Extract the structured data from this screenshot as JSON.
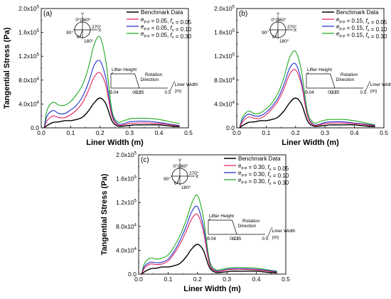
{
  "chart_data": [
    {
      "type": "line",
      "panel_label": "(a)",
      "xlabel": "Liner Width (m)",
      "ylabel": "Tangential Stress (Pa)",
      "xlim": [
        0.0,
        0.5
      ],
      "ylim": [
        0,
        200000
      ],
      "x_ticks": [
        "0.0",
        "0.1",
        "0.2",
        "0.3",
        "0.4",
        "0.5"
      ],
      "y_ticks": [
        "0.0",
        "4.0x10^4",
        "8.0x10^4",
        "1.2x10^5",
        "1.6x10^5",
        "2.0x10^5"
      ],
      "legend_position": "top-right",
      "series": [
        {
          "name": "Benchmark Data",
          "color": "#000000",
          "x": [
            0.01,
            0.02,
            0.04,
            0.06,
            0.08,
            0.1,
            0.12,
            0.14,
            0.16,
            0.18,
            0.2,
            0.22,
            0.24,
            0.26,
            0.28,
            0.3,
            0.32,
            0.36,
            0.4,
            0.44,
            0.47
          ],
          "y": [
            0,
            4000,
            9000,
            10000,
            12000,
            12000,
            14000,
            18000,
            28000,
            42000,
            50000,
            40000,
            12000,
            3000,
            3000,
            4000,
            5000,
            5000,
            5000,
            3000,
            2000
          ]
        },
        {
          "name": "e_p-p = 0.05, f_s = 0.05",
          "color": "#e0245e",
          "x": [
            0.01,
            0.02,
            0.04,
            0.06,
            0.08,
            0.1,
            0.12,
            0.14,
            0.16,
            0.18,
            0.2,
            0.22,
            0.24,
            0.26,
            0.28,
            0.3,
            0.32,
            0.36,
            0.4,
            0.44,
            0.47
          ],
          "y": [
            0,
            12000,
            20000,
            17000,
            17000,
            22000,
            30000,
            42000,
            62000,
            85000,
            92000,
            70000,
            20000,
            5000,
            5000,
            7000,
            8000,
            8000,
            7000,
            5000,
            3000
          ]
        },
        {
          "name": "e_p-p = 0.05, f_s = 0.10",
          "color": "#2233cc",
          "x": [
            0.01,
            0.02,
            0.04,
            0.06,
            0.08,
            0.1,
            0.12,
            0.14,
            0.16,
            0.18,
            0.2,
            0.22,
            0.24,
            0.26,
            0.28,
            0.3,
            0.32,
            0.36,
            0.4,
            0.44,
            0.47
          ],
          "y": [
            0,
            20000,
            29000,
            24000,
            24000,
            30000,
            38000,
            52000,
            75000,
            105000,
            112000,
            82000,
            24000,
            7000,
            7000,
            10000,
            11000,
            11000,
            9000,
            6000,
            4000
          ]
        },
        {
          "name": "e_p-p = 0.05, f_s = 0.30",
          "color": "#22aa22",
          "x": [
            0.01,
            0.02,
            0.04,
            0.06,
            0.08,
            0.1,
            0.12,
            0.14,
            0.16,
            0.18,
            0.2,
            0.22,
            0.24,
            0.26,
            0.28,
            0.3,
            0.32,
            0.36,
            0.4,
            0.44,
            0.47
          ],
          "y": [
            0,
            30000,
            43000,
            38000,
            38000,
            44000,
            56000,
            72000,
            100000,
            140000,
            152000,
            110000,
            30000,
            10000,
            12000,
            15000,
            16000,
            16000,
            14000,
            10000,
            7000
          ]
        }
      ],
      "inset": {
        "polar_labels": [
          "Y",
          "0°",
          "360°",
          "270°",
          "X",
          "90°",
          "6°",
          "180°"
        ],
        "lifter_height": "Lifter Height",
        "rotation": "Rotation",
        "direction": "Direction",
        "liner_width": "Liner Width",
        "unit": "(m)",
        "ticks": [
          "0",
          "0.04",
          "0.21",
          "0.25",
          "0.5"
        ]
      }
    },
    {
      "type": "line",
      "panel_label": "(b)",
      "xlabel": "Liner Width (m)",
      "ylabel": "",
      "xlim": [
        0.0,
        0.5
      ],
      "ylim": [
        0,
        200000
      ],
      "x_ticks": [
        "0.0",
        "0.1",
        "0.2",
        "0.3",
        "0.4",
        "0.5"
      ],
      "y_ticks": [
        "0.0",
        "4.0x10^4",
        "8.0x10^4",
        "1.2x10^5",
        "1.6x10^5",
        "2.0x10^5"
      ],
      "legend_position": "top-right",
      "series": [
        {
          "name": "Benchmark Data",
          "color": "#000000",
          "x": [
            0.01,
            0.02,
            0.04,
            0.06,
            0.08,
            0.1,
            0.12,
            0.14,
            0.16,
            0.18,
            0.2,
            0.22,
            0.24,
            0.26,
            0.28,
            0.3,
            0.32,
            0.36,
            0.4,
            0.44,
            0.47
          ],
          "y": [
            0,
            4000,
            9000,
            10000,
            12000,
            12000,
            14000,
            18000,
            28000,
            42000,
            50000,
            40000,
            12000,
            3000,
            3000,
            4000,
            5000,
            5000,
            5000,
            3000,
            2000
          ]
        },
        {
          "name": "e_p-p = 0.15, f_s = 0.05",
          "color": "#e0245e",
          "x": [
            0.01,
            0.02,
            0.04,
            0.06,
            0.08,
            0.1,
            0.12,
            0.14,
            0.16,
            0.18,
            0.2,
            0.22,
            0.24,
            0.26,
            0.28,
            0.3,
            0.32,
            0.36,
            0.4,
            0.44,
            0.47
          ],
          "y": [
            0,
            10000,
            18000,
            16000,
            16000,
            22000,
            32000,
            45000,
            65000,
            90000,
            97000,
            72000,
            20000,
            5000,
            5000,
            7000,
            8000,
            8000,
            7000,
            5000,
            3000
          ]
        },
        {
          "name": "e_p-p = 0.15, f_s = 0.10",
          "color": "#2233cc",
          "x": [
            0.01,
            0.02,
            0.04,
            0.06,
            0.08,
            0.1,
            0.12,
            0.14,
            0.16,
            0.18,
            0.2,
            0.22,
            0.24,
            0.26,
            0.28,
            0.3,
            0.32,
            0.36,
            0.4,
            0.44,
            0.47
          ],
          "y": [
            0,
            14000,
            23000,
            20000,
            20000,
            26000,
            36000,
            50000,
            72000,
            100000,
            107000,
            78000,
            22000,
            6000,
            6000,
            9000,
            10000,
            10000,
            8000,
            6000,
            4000
          ]
        },
        {
          "name": "e_p-p = 0.15, f_s = 0.30",
          "color": "#22aa22",
          "x": [
            0.01,
            0.02,
            0.04,
            0.06,
            0.08,
            0.1,
            0.12,
            0.14,
            0.16,
            0.18,
            0.2,
            0.22,
            0.24,
            0.26,
            0.28,
            0.3,
            0.32,
            0.36,
            0.4,
            0.44,
            0.47
          ],
          "y": [
            0,
            18000,
            28000,
            24000,
            25000,
            32000,
            42000,
            58000,
            84000,
            118000,
            128000,
            95000,
            28000,
            9000,
            10000,
            13000,
            14000,
            14000,
            12000,
            8000,
            5000
          ]
        }
      ],
      "inset": {
        "polar_labels": [
          "Y",
          "0°",
          "360°",
          "270°",
          "X",
          "90°",
          "6°",
          "180°"
        ],
        "lifter_height": "Lifter Height",
        "rotation": "Rotation",
        "direction": "Direction",
        "liner_width": "Liner Width",
        "unit": "(m)",
        "ticks": [
          "0",
          "0.04",
          "0.21",
          "0.25",
          "0.5"
        ]
      }
    },
    {
      "type": "line",
      "panel_label": "(c)",
      "xlabel": "Liner Width (m)",
      "ylabel": "Tangential Stress (Pa)",
      "xlim": [
        0.0,
        0.5
      ],
      "ylim": [
        0,
        200000
      ],
      "x_ticks": [
        "0.0",
        "0.1",
        "0.2",
        "0.3",
        "0.4",
        "0.5"
      ],
      "y_ticks": [
        "0.0",
        "4.0x10^4",
        "8.0x10^4",
        "1.2x10^5",
        "1.6x10^5",
        "2.0x10^5"
      ],
      "legend_position": "top-right",
      "series": [
        {
          "name": "Benchmark Data",
          "color": "#000000",
          "x": [
            0.01,
            0.02,
            0.04,
            0.06,
            0.08,
            0.1,
            0.12,
            0.14,
            0.16,
            0.18,
            0.2,
            0.22,
            0.24,
            0.26,
            0.28,
            0.3,
            0.32,
            0.36,
            0.4,
            0.44,
            0.47
          ],
          "y": [
            0,
            4000,
            9000,
            10000,
            12000,
            12000,
            14000,
            18000,
            28000,
            42000,
            50000,
            40000,
            12000,
            3000,
            3000,
            4000,
            5000,
            5000,
            5000,
            3000,
            2000
          ]
        },
        {
          "name": "e_p-p = 0.30, f_s = 0.05",
          "color": "#e0245e",
          "x": [
            0.01,
            0.02,
            0.04,
            0.06,
            0.08,
            0.1,
            0.12,
            0.14,
            0.16,
            0.18,
            0.2,
            0.22,
            0.24,
            0.26,
            0.28,
            0.3,
            0.32,
            0.36,
            0.4,
            0.44,
            0.47
          ],
          "y": [
            0,
            10000,
            17000,
            16000,
            17000,
            22000,
            34000,
            50000,
            70000,
            92000,
            100000,
            72000,
            18000,
            5000,
            5000,
            7000,
            8000,
            8000,
            7000,
            5000,
            3000
          ]
        },
        {
          "name": "e_p-p = 0.30, f_s = 0.10",
          "color": "#2233cc",
          "x": [
            0.01,
            0.02,
            0.04,
            0.06,
            0.08,
            0.1,
            0.12,
            0.14,
            0.16,
            0.18,
            0.2,
            0.22,
            0.24,
            0.26,
            0.28,
            0.3,
            0.32,
            0.36,
            0.4,
            0.44,
            0.47
          ],
          "y": [
            0,
            13000,
            20000,
            19000,
            20000,
            25000,
            38000,
            56000,
            78000,
            104000,
            113000,
            80000,
            20000,
            6000,
            6000,
            8000,
            9000,
            9000,
            8000,
            6000,
            4000
          ]
        },
        {
          "name": "e_p-p = 0.30, f_s = 0.30",
          "color": "#22aa22",
          "x": [
            0.01,
            0.02,
            0.04,
            0.06,
            0.08,
            0.1,
            0.12,
            0.14,
            0.16,
            0.18,
            0.2,
            0.22,
            0.24,
            0.26,
            0.28,
            0.3,
            0.32,
            0.36,
            0.4,
            0.44,
            0.47
          ],
          "y": [
            0,
            18000,
            27000,
            25000,
            27000,
            32000,
            46000,
            64000,
            88000,
            118000,
            132000,
            95000,
            25000,
            8000,
            8000,
            10000,
            11000,
            11000,
            10000,
            7000,
            5000
          ]
        }
      ],
      "inset": {
        "polar_labels": [
          "Y",
          "0°",
          "360°",
          "270°",
          "X",
          "90°",
          "6°",
          "180°"
        ],
        "lifter_height": "Lifter Height",
        "rotation": "Rotation",
        "direction": "Direction",
        "liner_width": "Liner Width",
        "unit": "(m)",
        "ticks": [
          "0",
          "0.04",
          "0.21",
          "0.25",
          "0.5"
        ]
      }
    }
  ]
}
